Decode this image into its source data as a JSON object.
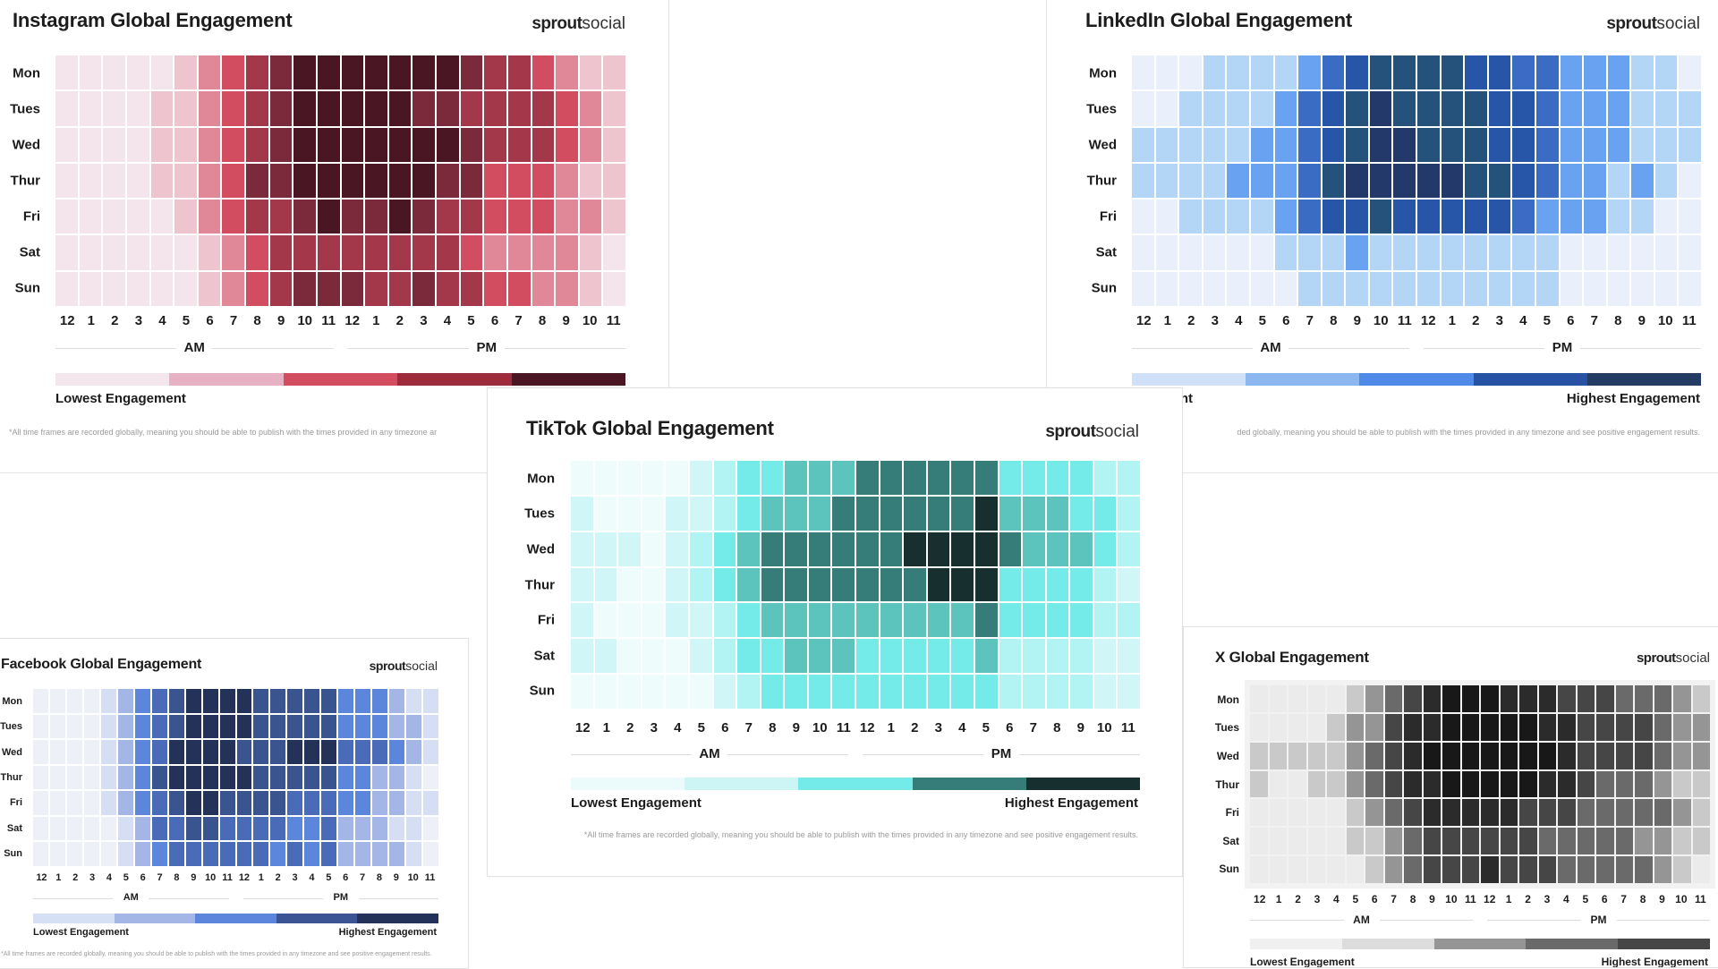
{
  "days": [
    "Mon",
    "Tues",
    "Wed",
    "Thur",
    "Fri",
    "Sat",
    "Sun"
  ],
  "hours": [
    "12",
    "1",
    "2",
    "3",
    "4",
    "5",
    "6",
    "7",
    "8",
    "9",
    "10",
    "11",
    "12",
    "1",
    "2",
    "3",
    "4",
    "5",
    "6",
    "7",
    "8",
    "9",
    "10",
    "11"
  ],
  "am_label": "AM",
  "pm_label": "PM",
  "brand": {
    "bold": "sprout",
    "light": "social"
  },
  "lowest_label": "Lowest Engagement",
  "highest_label": "Highest Engagement",
  "footnote": "*All time frames are recorded globally, meaning you should be able to publish with the times provided in any timezone and see positive engagement results.",
  "chart_data": [
    {
      "id": "instagram",
      "type": "heatmap",
      "title": "Instagram Global Engagement",
      "scale": "7 shade levels, 0 = lowest engagement, 6 = highest",
      "cell_colors": [
        "#f3e5eb",
        "#eec5cf",
        "#e08898",
        "#d24d60",
        "#a2384a",
        "#7a2a3a",
        "#4b1623"
      ],
      "legend_colors": [
        "#f3e6ec",
        "#e6b2c3",
        "#d24d60",
        "#9e2b3b",
        "#4b1623"
      ],
      "legend_labels": [
        "Lowest Engagement"
      ],
      "rows": [
        [
          0,
          0,
          0,
          0,
          0,
          1,
          2,
          3,
          4,
          5,
          6,
          6,
          6,
          6,
          6,
          6,
          6,
          5,
          4,
          4,
          3,
          2,
          1,
          1
        ],
        [
          0,
          0,
          0,
          0,
          1,
          1,
          2,
          3,
          4,
          5,
          6,
          6,
          6,
          6,
          6,
          5,
          5,
          4,
          4,
          4,
          4,
          3,
          2,
          1
        ],
        [
          0,
          0,
          0,
          0,
          1,
          1,
          2,
          3,
          4,
          5,
          6,
          6,
          6,
          6,
          6,
          6,
          6,
          5,
          4,
          4,
          4,
          3,
          2,
          1
        ],
        [
          0,
          0,
          0,
          0,
          1,
          1,
          2,
          3,
          5,
          5,
          6,
          6,
          6,
          6,
          6,
          6,
          5,
          5,
          3,
          3,
          3,
          2,
          1,
          1
        ],
        [
          0,
          0,
          0,
          0,
          0,
          1,
          2,
          3,
          4,
          4,
          5,
          6,
          5,
          5,
          6,
          5,
          4,
          4,
          3,
          3,
          3,
          2,
          2,
          1
        ],
        [
          0,
          0,
          0,
          0,
          0,
          0,
          1,
          2,
          3,
          4,
          4,
          4,
          4,
          4,
          4,
          4,
          4,
          3,
          2,
          2,
          2,
          2,
          1,
          0
        ],
        [
          0,
          0,
          0,
          0,
          0,
          0,
          1,
          2,
          3,
          4,
          5,
          5,
          5,
          4,
          4,
          5,
          4,
          4,
          3,
          3,
          2,
          2,
          1,
          0
        ]
      ],
      "footnote": "*All time frames are recorded globally, meaning you should be able to publish with the times provided in any timezone ar"
    },
    {
      "id": "linkedin",
      "type": "heatmap",
      "title": "LinkedIn Global Engagement",
      "scale": "7 shade levels, 0 = lowest engagement, 6 = highest",
      "cell_colors": [
        "#eaf0fb",
        "#b3d6f6",
        "#68a2f1",
        "#3b6cc4",
        "#2756a8",
        "#25527a",
        "#22396a"
      ],
      "legend_colors": [
        "#cfe0f8",
        "#8cb6f0",
        "#4f8ae8",
        "#2752a3",
        "#243c64"
      ],
      "legend_labels": [
        "Engagement",
        "Highest Engagement"
      ],
      "rows": [
        [
          0,
          0,
          0,
          1,
          1,
          1,
          1,
          2,
          3,
          4,
          5,
          5,
          5,
          5,
          4,
          4,
          3,
          3,
          2,
          2,
          2,
          1,
          1,
          0
        ],
        [
          0,
          0,
          1,
          1,
          1,
          1,
          2,
          3,
          4,
          5,
          6,
          5,
          5,
          5,
          5,
          4,
          4,
          3,
          2,
          2,
          2,
          1,
          1,
          1
        ],
        [
          1,
          1,
          1,
          1,
          1,
          2,
          2,
          3,
          4,
          5,
          6,
          6,
          5,
          5,
          5,
          4,
          4,
          3,
          2,
          2,
          2,
          1,
          1,
          1
        ],
        [
          1,
          1,
          1,
          1,
          2,
          2,
          2,
          3,
          5,
          6,
          6,
          6,
          6,
          6,
          5,
          5,
          4,
          3,
          2,
          2,
          1,
          2,
          1,
          0
        ],
        [
          0,
          0,
          1,
          1,
          1,
          1,
          2,
          3,
          4,
          4,
          5,
          4,
          4,
          4,
          4,
          4,
          3,
          2,
          2,
          2,
          1,
          1,
          0,
          0
        ],
        [
          0,
          0,
          0,
          0,
          0,
          0,
          1,
          1,
          1,
          2,
          1,
          1,
          1,
          1,
          1,
          1,
          1,
          1,
          0,
          0,
          0,
          0,
          0,
          0
        ],
        [
          0,
          0,
          0,
          0,
          0,
          0,
          0,
          1,
          1,
          1,
          1,
          1,
          1,
          1,
          1,
          1,
          1,
          1,
          0,
          0,
          0,
          0,
          0,
          0
        ]
      ],
      "footnote": "ded globally, meaning you should be able to publish with the times provided in any timezone and see positive engagement results."
    },
    {
      "id": "tiktok",
      "type": "heatmap",
      "title": "TikTok Global Engagement",
      "scale": "7 shade levels, 0 = lowest engagement, 6 = highest",
      "cell_colors": [
        "#eefcfc",
        "#d0f6f7",
        "#b2f3f4",
        "#74ebe9",
        "#5cc4bc",
        "#367c79",
        "#17302f"
      ],
      "legend_colors": [
        "#ebfbfb",
        "#cdf5f6",
        "#74ebe9",
        "#367c79",
        "#17302f"
      ],
      "legend_labels": [
        "Lowest Engagement",
        "Highest Engagement"
      ],
      "rows": [
        [
          0,
          0,
          0,
          0,
          0,
          1,
          2,
          3,
          3,
          4,
          4,
          4,
          5,
          5,
          5,
          5,
          5,
          5,
          3,
          3,
          3,
          3,
          2,
          2
        ],
        [
          1,
          0,
          0,
          0,
          1,
          1,
          2,
          3,
          4,
          4,
          4,
          5,
          5,
          5,
          5,
          5,
          5,
          6,
          4,
          4,
          4,
          3,
          3,
          2
        ],
        [
          1,
          1,
          1,
          0,
          1,
          2,
          3,
          4,
          5,
          5,
          5,
          5,
          5,
          5,
          6,
          6,
          6,
          6,
          5,
          4,
          4,
          4,
          3,
          2
        ],
        [
          1,
          1,
          0,
          0,
          1,
          2,
          3,
          4,
          5,
          5,
          5,
          5,
          5,
          5,
          5,
          6,
          6,
          6,
          3,
          3,
          3,
          3,
          2,
          1
        ],
        [
          1,
          0,
          0,
          0,
          1,
          1,
          2,
          3,
          4,
          4,
          4,
          4,
          4,
          4,
          4,
          4,
          4,
          5,
          3,
          3,
          3,
          3,
          2,
          2
        ],
        [
          1,
          1,
          0,
          0,
          0,
          1,
          2,
          3,
          3,
          4,
          4,
          4,
          3,
          3,
          3,
          3,
          3,
          4,
          2,
          2,
          2,
          2,
          1,
          1
        ],
        [
          0,
          0,
          0,
          0,
          0,
          0,
          1,
          2,
          3,
          3,
          3,
          3,
          3,
          3,
          3,
          3,
          3,
          3,
          2,
          2,
          2,
          2,
          1,
          1
        ]
      ],
      "footnote": "*All time frames are recorded globally, meaning you should be able to publish with the times provided in any timezone and see positive engagement results."
    },
    {
      "id": "facebook",
      "type": "heatmap",
      "title": "Facebook Global Engagement",
      "scale": "7 shade levels, 0 = lowest engagement, 6 = highest",
      "cell_colors": [
        "#eef0f8",
        "#d5def3",
        "#a4b6e6",
        "#5b86dc",
        "#4a6cb8",
        "#3a5490",
        "#24325a"
      ],
      "legend_colors": [
        "#d5e0f5",
        "#a4b6e6",
        "#5b86dc",
        "#3d5494",
        "#24325a"
      ],
      "legend_labels": [
        "Lowest Engagement",
        "Highest Engagement"
      ],
      "rows": [
        [
          0,
          0,
          0,
          0,
          1,
          2,
          3,
          4,
          5,
          6,
          6,
          6,
          6,
          5,
          5,
          5,
          5,
          5,
          3,
          3,
          3,
          2,
          1,
          1
        ],
        [
          0,
          0,
          0,
          0,
          1,
          2,
          3,
          4,
          5,
          6,
          6,
          6,
          6,
          5,
          5,
          5,
          5,
          5,
          3,
          3,
          3,
          2,
          2,
          1
        ],
        [
          0,
          0,
          0,
          0,
          1,
          2,
          3,
          4,
          6,
          6,
          6,
          6,
          5,
          5,
          5,
          6,
          6,
          6,
          4,
          4,
          4,
          3,
          2,
          1
        ],
        [
          0,
          0,
          0,
          0,
          1,
          2,
          3,
          5,
          6,
          6,
          6,
          6,
          6,
          5,
          5,
          5,
          5,
          5,
          3,
          3,
          2,
          2,
          1,
          0
        ],
        [
          0,
          0,
          0,
          0,
          1,
          2,
          3,
          4,
          5,
          6,
          6,
          5,
          5,
          5,
          5,
          4,
          4,
          4,
          3,
          3,
          2,
          2,
          1,
          1
        ],
        [
          0,
          0,
          0,
          0,
          0,
          1,
          2,
          4,
          4,
          5,
          5,
          4,
          4,
          4,
          4,
          3,
          3,
          4,
          2,
          2,
          2,
          1,
          1,
          0
        ],
        [
          0,
          0,
          0,
          0,
          0,
          1,
          2,
          3,
          4,
          4,
          4,
          4,
          4,
          4,
          3,
          4,
          3,
          4,
          2,
          2,
          2,
          2,
          1,
          0
        ]
      ],
      "footnote": "*All time frames are recorded globally, meaning you should be able to publish with the times provided in any timezone and see positive engagement results."
    },
    {
      "id": "x",
      "type": "heatmap",
      "title": "X Global Engagement",
      "scale": "7 shade levels, 0 = lowest engagement, 6 = highest",
      "cell_colors": [
        "#ebebeb",
        "#c9c9c9",
        "#959595",
        "#6a6a6a",
        "#464646",
        "#2b2b2b",
        "#181818"
      ],
      "legend_colors": [
        "#f0f0f0",
        "#dcdcdc",
        "#959595",
        "#6a6a6a",
        "#464646"
      ],
      "legend_labels": [
        "Lowest Engagement",
        "Highest Engagement"
      ],
      "rows": [
        [
          0,
          0,
          0,
          0,
          0,
          1,
          2,
          3,
          4,
          5,
          6,
          6,
          6,
          5,
          5,
          5,
          4,
          4,
          4,
          3,
          3,
          3,
          2,
          1
        ],
        [
          0,
          0,
          0,
          0,
          1,
          2,
          2,
          4,
          5,
          5,
          6,
          6,
          6,
          6,
          6,
          5,
          5,
          4,
          4,
          4,
          4,
          3,
          2,
          2
        ],
        [
          1,
          1,
          1,
          1,
          1,
          2,
          3,
          4,
          5,
          6,
          6,
          6,
          6,
          6,
          6,
          6,
          5,
          4,
          4,
          4,
          4,
          3,
          2,
          2
        ],
        [
          1,
          0,
          0,
          1,
          1,
          2,
          3,
          4,
          5,
          5,
          6,
          6,
          6,
          6,
          6,
          5,
          5,
          4,
          3,
          3,
          3,
          2,
          1,
          1
        ],
        [
          0,
          0,
          0,
          0,
          0,
          1,
          2,
          3,
          4,
          5,
          5,
          5,
          5,
          5,
          4,
          4,
          4,
          3,
          3,
          3,
          3,
          3,
          2,
          1
        ],
        [
          0,
          0,
          0,
          0,
          0,
          1,
          1,
          2,
          3,
          4,
          4,
          4,
          4,
          4,
          4,
          3,
          3,
          3,
          3,
          3,
          2,
          2,
          1,
          1
        ],
        [
          0,
          0,
          0,
          0,
          0,
          0,
          1,
          2,
          3,
          4,
          4,
          4,
          5,
          4,
          4,
          4,
          3,
          3,
          3,
          3,
          3,
          2,
          1,
          0
        ]
      ],
      "footnote": ""
    }
  ]
}
